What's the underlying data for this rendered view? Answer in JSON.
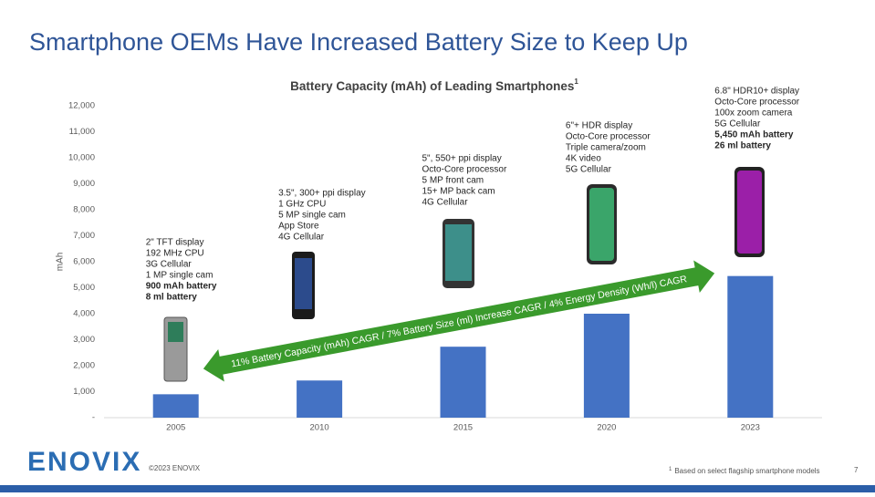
{
  "slide_title": "Smartphone OEMs Have Increased Battery Size to Keep Up",
  "chart_data": {
    "type": "bar",
    "title": "Battery Capacity (mAh) of Leading Smartphones",
    "title_note": "1",
    "y_label": "mAh",
    "categories": [
      "2005",
      "2010",
      "2015",
      "2020",
      "2023"
    ],
    "values": [
      900,
      1430,
      2730,
      4000,
      5450
    ],
    "color": "#4472c4",
    "ylim": [
      0,
      12000
    ],
    "yticks": [
      {
        "value": 0,
        "label": "-"
      },
      {
        "value": 1000,
        "label": "1,000"
      },
      {
        "value": 2000,
        "label": "2,000"
      },
      {
        "value": 3000,
        "label": "3,000"
      },
      {
        "value": 4000,
        "label": "4,000"
      },
      {
        "value": 5000,
        "label": "5,000"
      },
      {
        "value": 6000,
        "label": "6,000"
      },
      {
        "value": 7000,
        "label": "7,000"
      },
      {
        "value": 8000,
        "label": "8,000"
      },
      {
        "value": 9000,
        "label": "9,000"
      },
      {
        "value": 10000,
        "label": "10,000"
      },
      {
        "value": 11000,
        "label": "11,000"
      },
      {
        "value": 12000,
        "label": "12,000"
      }
    ],
    "annotations": [
      {
        "lines": [
          "2\" TFT display",
          "192 MHz CPU",
          "3G Cellular",
          "1 MP single cam"
        ],
        "highlights": [
          "900 mAh battery",
          "8 ml battery"
        ]
      },
      {
        "lines": [
          "3.5\", 300+ ppi display",
          "1 GHz CPU",
          "5 MP single cam",
          "App Store",
          "4G Cellular"
        ],
        "highlights": []
      },
      {
        "lines": [
          "5\", 550+ ppi display",
          "Octo-Core processor",
          "5 MP front cam",
          "15+ MP back cam",
          "4G Cellular"
        ],
        "highlights": []
      },
      {
        "lines": [
          "6\"+ HDR display",
          "Octo-Core processor",
          "Triple camera/zoom",
          "4K video",
          "5G Cellular"
        ],
        "highlights": []
      },
      {
        "lines": [
          "6.8\" HDR10+ display",
          "Octo-Core processor",
          "100x zoom camera",
          "5G Cellular"
        ],
        "highlights": [
          "5,450 mAh battery",
          "26 ml battery"
        ]
      }
    ],
    "arrow_text": "11% Battery Capacity (mAh) CAGR / 7% Battery Size (ml) Increase CAGR / 4% Energy Density (Wh/l) CAGR"
  },
  "footer": {
    "logo": "ENOVIX",
    "copyright": "©2023 ENOVIX",
    "footnote_marker": "1",
    "footnote": "Based on select flagship smartphone models",
    "page": "7"
  }
}
